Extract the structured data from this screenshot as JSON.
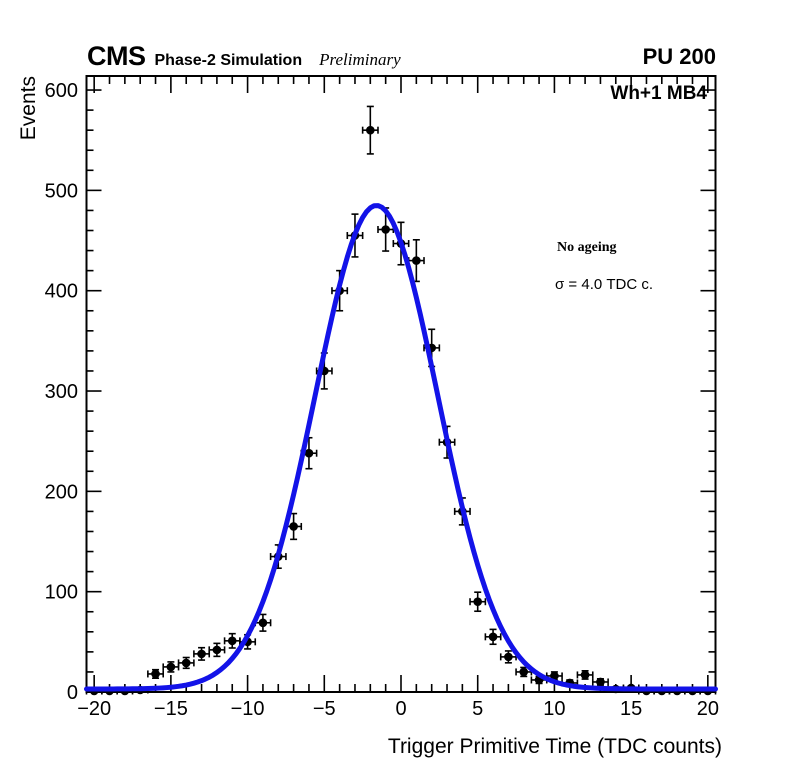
{
  "header": {
    "experiment": "CMS",
    "subtitle": "Phase-2 Simulation",
    "status": "Preliminary",
    "pileup": "PU 200"
  },
  "plot": {
    "region_label": "Wh+1 MB4",
    "annotation_line1": "No ageing",
    "annotation_line2": "σ = 4.0 TDC c."
  },
  "chart_data": {
    "type": "scatter",
    "title": "",
    "xlabel": "Trigger Primitive Time (TDC counts)",
    "ylabel": "Events",
    "xlim": [
      -20.5,
      20.5
    ],
    "ylim": [
      0,
      614
    ],
    "grid": false,
    "legend": null,
    "x_major_ticks": [
      -20,
      -15,
      -10,
      -5,
      0,
      5,
      10,
      15,
      20
    ],
    "x_minor_step": 1,
    "y_major_ticks": [
      0,
      100,
      200,
      300,
      400,
      500,
      600
    ],
    "y_minor_step": 20,
    "x_error": 0.5,
    "marker_color": "#000000",
    "points": [
      [
        -20,
        1
      ],
      [
        -19,
        1
      ],
      [
        -18,
        1
      ],
      [
        -17,
        2
      ],
      [
        -16,
        18
      ],
      [
        -15,
        25
      ],
      [
        -14,
        29
      ],
      [
        -13,
        38
      ],
      [
        -12,
        42
      ],
      [
        -11,
        51
      ],
      [
        -10,
        50
      ],
      [
        -9,
        69
      ],
      [
        -8,
        135
      ],
      [
        -7,
        165
      ],
      [
        -6,
        238
      ],
      [
        -5,
        320
      ],
      [
        -4,
        400
      ],
      [
        -3,
        455
      ],
      [
        -2,
        560
      ],
      [
        -1,
        461
      ],
      [
        0,
        447
      ],
      [
        1,
        430
      ],
      [
        2,
        343
      ],
      [
        3,
        249
      ],
      [
        4,
        180
      ],
      [
        5,
        90
      ],
      [
        6,
        55
      ],
      [
        7,
        35
      ],
      [
        8,
        20
      ],
      [
        9,
        12
      ],
      [
        10,
        16
      ],
      [
        11,
        9
      ],
      [
        12,
        17
      ],
      [
        13,
        10
      ],
      [
        14,
        3
      ],
      [
        15,
        4
      ],
      [
        16,
        1
      ],
      [
        17,
        1
      ],
      [
        18,
        1
      ],
      [
        19,
        1
      ],
      [
        20,
        1
      ]
    ],
    "fit": {
      "type": "gaussian",
      "baseline": 3,
      "amplitude": 482,
      "mean": -1.6,
      "sigma": 4.0,
      "color": "#1313E8",
      "line_width": 5
    }
  }
}
